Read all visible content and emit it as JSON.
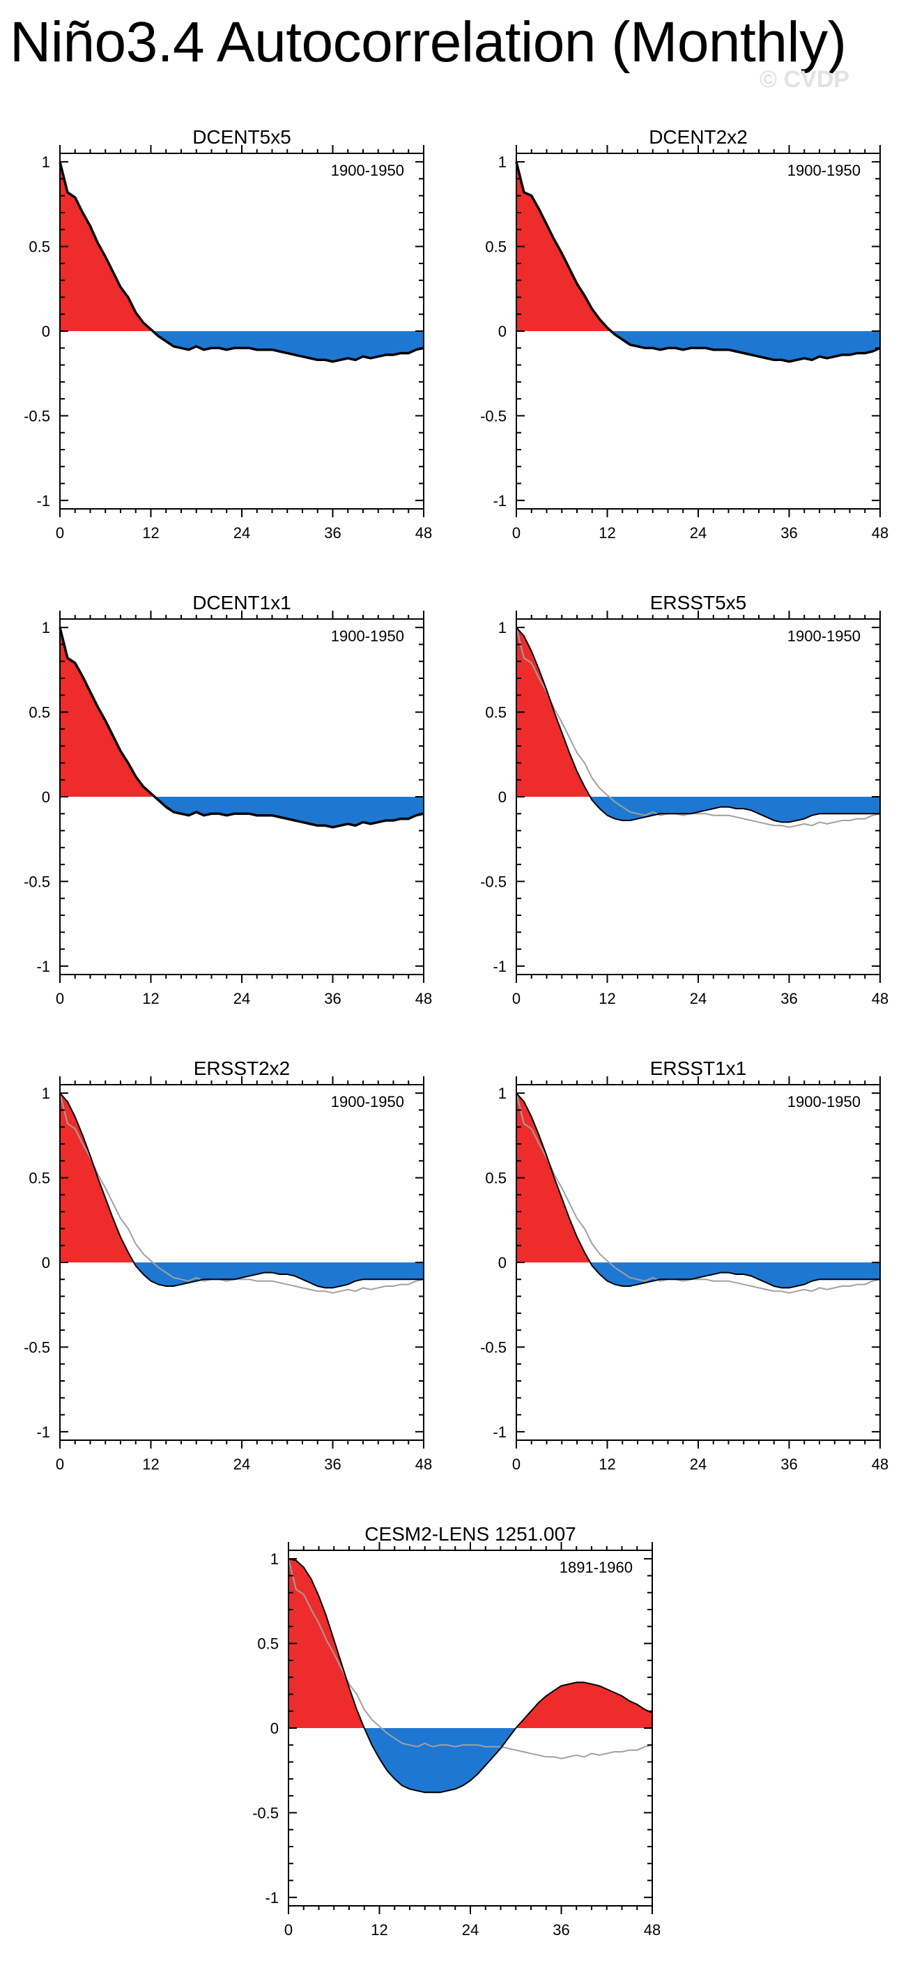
{
  "page": {
    "title": "Niño3.4 Autocorrelation (Monthly)",
    "watermark": "© CVDP"
  },
  "colors": {
    "positive_fill": "#ee2c2c",
    "negative_fill": "#1e78d2",
    "series_line": "#000000",
    "reference_line": "#a0a0a0"
  },
  "chart_data": [
    {
      "type": "area",
      "title": "DCENT5x5",
      "period": "1900-1950",
      "xlim": [
        0,
        48
      ],
      "ylim": [
        -1.05,
        1.05
      ],
      "xticks": [
        0,
        12,
        24,
        36,
        48
      ],
      "yticks": [
        -1,
        -0.5,
        0,
        0.5,
        1
      ],
      "ytick_labels": [
        "-1",
        "-0.5",
        "0",
        "0.5",
        "1"
      ],
      "lags": [
        0,
        1,
        2,
        3,
        4,
        5,
        6,
        7,
        8,
        9,
        10,
        11,
        12,
        13,
        14,
        15,
        16,
        17,
        18,
        19,
        20,
        21,
        22,
        23,
        24,
        25,
        26,
        27,
        28,
        29,
        30,
        31,
        32,
        33,
        34,
        35,
        36,
        37,
        38,
        39,
        40,
        41,
        42,
        43,
        44,
        45,
        46,
        47,
        48
      ],
      "series": [
        {
          "name": "DCENT5x5",
          "values": [
            1.0,
            0.82,
            0.79,
            0.7,
            0.62,
            0.52,
            0.44,
            0.35,
            0.26,
            0.2,
            0.11,
            0.05,
            0.01,
            -0.03,
            -0.06,
            -0.09,
            -0.1,
            -0.11,
            -0.09,
            -0.11,
            -0.1,
            -0.1,
            -0.11,
            -0.1,
            -0.1,
            -0.1,
            -0.11,
            -0.11,
            -0.11,
            -0.12,
            -0.13,
            -0.14,
            -0.15,
            -0.16,
            -0.17,
            -0.17,
            -0.18,
            -0.17,
            -0.16,
            -0.17,
            -0.15,
            -0.16,
            -0.15,
            -0.14,
            -0.14,
            -0.13,
            -0.13,
            -0.11,
            -0.1
          ]
        }
      ]
    },
    {
      "type": "area",
      "title": "DCENT2x2",
      "period": "1900-1950",
      "xlim": [
        0,
        48
      ],
      "ylim": [
        -1.05,
        1.05
      ],
      "xticks": [
        0,
        12,
        24,
        36,
        48
      ],
      "yticks": [
        -1,
        -0.5,
        0,
        0.5,
        1
      ],
      "ytick_labels": [
        "-1",
        "-0.5",
        "0",
        "0.5",
        "1"
      ],
      "lags": [
        0,
        1,
        2,
        3,
        4,
        5,
        6,
        7,
        8,
        9,
        10,
        11,
        12,
        13,
        14,
        15,
        16,
        17,
        18,
        19,
        20,
        21,
        22,
        23,
        24,
        25,
        26,
        27,
        28,
        29,
        30,
        31,
        32,
        33,
        34,
        35,
        36,
        37,
        38,
        39,
        40,
        41,
        42,
        43,
        44,
        45,
        46,
        47,
        48
      ],
      "series": [
        {
          "name": "DCENT2x2",
          "values": [
            1.0,
            0.82,
            0.8,
            0.72,
            0.63,
            0.54,
            0.46,
            0.37,
            0.28,
            0.21,
            0.13,
            0.07,
            0.02,
            -0.02,
            -0.05,
            -0.08,
            -0.09,
            -0.1,
            -0.1,
            -0.11,
            -0.1,
            -0.1,
            -0.11,
            -0.1,
            -0.1,
            -0.1,
            -0.11,
            -0.11,
            -0.11,
            -0.12,
            -0.13,
            -0.14,
            -0.15,
            -0.16,
            -0.17,
            -0.17,
            -0.18,
            -0.17,
            -0.16,
            -0.17,
            -0.15,
            -0.16,
            -0.15,
            -0.14,
            -0.14,
            -0.13,
            -0.13,
            -0.12,
            -0.1
          ]
        }
      ]
    },
    {
      "type": "area",
      "title": "DCENT1x1",
      "period": "1900-1950",
      "xlim": [
        0,
        48
      ],
      "ylim": [
        -1.05,
        1.05
      ],
      "xticks": [
        0,
        12,
        24,
        36,
        48
      ],
      "yticks": [
        -1,
        -0.5,
        0,
        0.5,
        1
      ],
      "ytick_labels": [
        "-1",
        "-0.5",
        "0",
        "0.5",
        "1"
      ],
      "lags": [
        0,
        1,
        2,
        3,
        4,
        5,
        6,
        7,
        8,
        9,
        10,
        11,
        12,
        13,
        14,
        15,
        16,
        17,
        18,
        19,
        20,
        21,
        22,
        23,
        24,
        25,
        26,
        27,
        28,
        29,
        30,
        31,
        32,
        33,
        34,
        35,
        36,
        37,
        38,
        39,
        40,
        41,
        42,
        43,
        44,
        45,
        46,
        47,
        48
      ],
      "series": [
        {
          "name": "DCENT1x1",
          "values": [
            1.0,
            0.82,
            0.79,
            0.71,
            0.62,
            0.53,
            0.45,
            0.36,
            0.27,
            0.2,
            0.12,
            0.06,
            0.02,
            -0.02,
            -0.06,
            -0.09,
            -0.1,
            -0.11,
            -0.09,
            -0.11,
            -0.1,
            -0.1,
            -0.11,
            -0.1,
            -0.1,
            -0.1,
            -0.11,
            -0.11,
            -0.11,
            -0.12,
            -0.13,
            -0.14,
            -0.15,
            -0.16,
            -0.17,
            -0.17,
            -0.18,
            -0.17,
            -0.16,
            -0.17,
            -0.15,
            -0.16,
            -0.15,
            -0.14,
            -0.14,
            -0.13,
            -0.13,
            -0.11,
            -0.1
          ]
        }
      ]
    },
    {
      "type": "area",
      "title": "ERSST5x5",
      "period": "1900-1950",
      "xlim": [
        0,
        48
      ],
      "ylim": [
        -1.05,
        1.05
      ],
      "xticks": [
        0,
        12,
        24,
        36,
        48
      ],
      "yticks": [
        -1,
        -0.5,
        0,
        0.5,
        1
      ],
      "ytick_labels": [
        "-1",
        "-0.5",
        "0",
        "0.5",
        "1"
      ],
      "lags": [
        0,
        1,
        2,
        3,
        4,
        5,
        6,
        7,
        8,
        9,
        10,
        11,
        12,
        13,
        14,
        15,
        16,
        17,
        18,
        19,
        20,
        21,
        22,
        23,
        24,
        25,
        26,
        27,
        28,
        29,
        30,
        31,
        32,
        33,
        34,
        35,
        36,
        37,
        38,
        39,
        40,
        41,
        42,
        43,
        44,
        45,
        46,
        47,
        48
      ],
      "series": [
        {
          "name": "ERSST5x5",
          "values": [
            1.0,
            0.95,
            0.86,
            0.75,
            0.63,
            0.5,
            0.38,
            0.26,
            0.15,
            0.06,
            -0.02,
            -0.07,
            -0.11,
            -0.13,
            -0.14,
            -0.14,
            -0.13,
            -0.12,
            -0.11,
            -0.1,
            -0.1,
            -0.1,
            -0.1,
            -0.1,
            -0.09,
            -0.08,
            -0.07,
            -0.06,
            -0.06,
            -0.07,
            -0.07,
            -0.08,
            -0.1,
            -0.12,
            -0.14,
            -0.15,
            -0.15,
            -0.14,
            -0.13,
            -0.11,
            -0.1,
            -0.1,
            -0.1,
            -0.1,
            -0.1,
            -0.1,
            -0.1,
            -0.1,
            -0.1
          ]
        },
        {
          "name": "DCENT5x5 (reference)",
          "values": [
            1.0,
            0.82,
            0.79,
            0.7,
            0.62,
            0.52,
            0.44,
            0.35,
            0.26,
            0.2,
            0.11,
            0.05,
            0.01,
            -0.03,
            -0.06,
            -0.09,
            -0.1,
            -0.11,
            -0.09,
            -0.11,
            -0.1,
            -0.1,
            -0.11,
            -0.1,
            -0.1,
            -0.1,
            -0.11,
            -0.11,
            -0.11,
            -0.12,
            -0.13,
            -0.14,
            -0.15,
            -0.16,
            -0.17,
            -0.17,
            -0.18,
            -0.17,
            -0.16,
            -0.17,
            -0.15,
            -0.16,
            -0.15,
            -0.14,
            -0.14,
            -0.13,
            -0.13,
            -0.11,
            -0.1
          ]
        }
      ]
    },
    {
      "type": "area",
      "title": "ERSST2x2",
      "period": "1900-1950",
      "xlim": [
        0,
        48
      ],
      "ylim": [
        -1.05,
        1.05
      ],
      "xticks": [
        0,
        12,
        24,
        36,
        48
      ],
      "yticks": [
        -1,
        -0.5,
        0,
        0.5,
        1
      ],
      "ytick_labels": [
        "-1",
        "-0.5",
        "0",
        "0.5",
        "1"
      ],
      "lags": [
        0,
        1,
        2,
        3,
        4,
        5,
        6,
        7,
        8,
        9,
        10,
        11,
        12,
        13,
        14,
        15,
        16,
        17,
        18,
        19,
        20,
        21,
        22,
        23,
        24,
        25,
        26,
        27,
        28,
        29,
        30,
        31,
        32,
        33,
        34,
        35,
        36,
        37,
        38,
        39,
        40,
        41,
        42,
        43,
        44,
        45,
        46,
        47,
        48
      ],
      "series": [
        {
          "name": "ERSST2x2",
          "values": [
            1.0,
            0.95,
            0.86,
            0.75,
            0.63,
            0.5,
            0.38,
            0.26,
            0.15,
            0.06,
            -0.02,
            -0.07,
            -0.11,
            -0.13,
            -0.14,
            -0.14,
            -0.13,
            -0.12,
            -0.11,
            -0.1,
            -0.1,
            -0.1,
            -0.1,
            -0.1,
            -0.09,
            -0.08,
            -0.07,
            -0.06,
            -0.06,
            -0.07,
            -0.07,
            -0.08,
            -0.1,
            -0.12,
            -0.14,
            -0.15,
            -0.15,
            -0.14,
            -0.13,
            -0.11,
            -0.1,
            -0.1,
            -0.1,
            -0.1,
            -0.1,
            -0.1,
            -0.1,
            -0.1,
            -0.1
          ]
        },
        {
          "name": "DCENT5x5 (reference)",
          "values": [
            1.0,
            0.82,
            0.79,
            0.7,
            0.62,
            0.52,
            0.44,
            0.35,
            0.26,
            0.2,
            0.11,
            0.05,
            0.01,
            -0.03,
            -0.06,
            -0.09,
            -0.1,
            -0.11,
            -0.09,
            -0.11,
            -0.1,
            -0.1,
            -0.11,
            -0.1,
            -0.1,
            -0.1,
            -0.11,
            -0.11,
            -0.11,
            -0.12,
            -0.13,
            -0.14,
            -0.15,
            -0.16,
            -0.17,
            -0.17,
            -0.18,
            -0.17,
            -0.16,
            -0.17,
            -0.15,
            -0.16,
            -0.15,
            -0.14,
            -0.14,
            -0.13,
            -0.13,
            -0.11,
            -0.1
          ]
        }
      ]
    },
    {
      "type": "area",
      "title": "ERSST1x1",
      "period": "1900-1950",
      "xlim": [
        0,
        48
      ],
      "ylim": [
        -1.05,
        1.05
      ],
      "xticks": [
        0,
        12,
        24,
        36,
        48
      ],
      "yticks": [
        -1,
        -0.5,
        0,
        0.5,
        1
      ],
      "ytick_labels": [
        "-1",
        "-0.5",
        "0",
        "0.5",
        "1"
      ],
      "lags": [
        0,
        1,
        2,
        3,
        4,
        5,
        6,
        7,
        8,
        9,
        10,
        11,
        12,
        13,
        14,
        15,
        16,
        17,
        18,
        19,
        20,
        21,
        22,
        23,
        24,
        25,
        26,
        27,
        28,
        29,
        30,
        31,
        32,
        33,
        34,
        35,
        36,
        37,
        38,
        39,
        40,
        41,
        42,
        43,
        44,
        45,
        46,
        47,
        48
      ],
      "series": [
        {
          "name": "ERSST1x1",
          "values": [
            1.0,
            0.95,
            0.86,
            0.75,
            0.63,
            0.5,
            0.38,
            0.26,
            0.15,
            0.06,
            -0.02,
            -0.07,
            -0.11,
            -0.13,
            -0.14,
            -0.14,
            -0.13,
            -0.12,
            -0.11,
            -0.1,
            -0.1,
            -0.1,
            -0.1,
            -0.1,
            -0.09,
            -0.08,
            -0.07,
            -0.06,
            -0.06,
            -0.07,
            -0.07,
            -0.08,
            -0.1,
            -0.12,
            -0.14,
            -0.15,
            -0.15,
            -0.14,
            -0.13,
            -0.11,
            -0.1,
            -0.1,
            -0.1,
            -0.1,
            -0.1,
            -0.1,
            -0.1,
            -0.1,
            -0.1
          ]
        },
        {
          "name": "DCENT5x5 (reference)",
          "values": [
            1.0,
            0.82,
            0.79,
            0.7,
            0.62,
            0.52,
            0.44,
            0.35,
            0.26,
            0.2,
            0.11,
            0.05,
            0.01,
            -0.03,
            -0.06,
            -0.09,
            -0.1,
            -0.11,
            -0.09,
            -0.11,
            -0.1,
            -0.1,
            -0.11,
            -0.1,
            -0.1,
            -0.1,
            -0.11,
            -0.11,
            -0.11,
            -0.12,
            -0.13,
            -0.14,
            -0.15,
            -0.16,
            -0.17,
            -0.17,
            -0.18,
            -0.17,
            -0.16,
            -0.17,
            -0.15,
            -0.16,
            -0.15,
            -0.14,
            -0.14,
            -0.13,
            -0.13,
            -0.11,
            -0.1
          ]
        }
      ]
    },
    {
      "type": "area",
      "title": "CESM2-LENS 1251.007",
      "period": "1891-1960",
      "xlim": [
        0,
        48
      ],
      "ylim": [
        -1.05,
        1.05
      ],
      "xticks": [
        0,
        12,
        24,
        36,
        48
      ],
      "yticks": [
        -1,
        -0.5,
        0,
        0.5,
        1
      ],
      "ytick_labels": [
        "-1",
        "-0.5",
        "0",
        "0.5",
        "1"
      ],
      "lags": [
        0,
        1,
        2,
        3,
        4,
        5,
        6,
        7,
        8,
        9,
        10,
        11,
        12,
        13,
        14,
        15,
        16,
        17,
        18,
        19,
        20,
        21,
        22,
        23,
        24,
        25,
        26,
        27,
        28,
        29,
        30,
        31,
        32,
        33,
        34,
        35,
        36,
        37,
        38,
        39,
        40,
        41,
        42,
        43,
        44,
        45,
        46,
        47,
        48
      ],
      "series": [
        {
          "name": "CESM2-LENS 1251.007",
          "values": [
            1.0,
            0.99,
            0.95,
            0.88,
            0.78,
            0.66,
            0.52,
            0.38,
            0.24,
            0.11,
            0.0,
            -0.1,
            -0.18,
            -0.25,
            -0.3,
            -0.34,
            -0.36,
            -0.37,
            -0.38,
            -0.38,
            -0.38,
            -0.37,
            -0.36,
            -0.34,
            -0.31,
            -0.27,
            -0.22,
            -0.17,
            -0.12,
            -0.06,
            0.0,
            0.05,
            0.1,
            0.15,
            0.19,
            0.22,
            0.25,
            0.26,
            0.27,
            0.27,
            0.26,
            0.25,
            0.23,
            0.21,
            0.19,
            0.16,
            0.14,
            0.11,
            0.09
          ]
        },
        {
          "name": "DCENT5x5 (reference)",
          "values": [
            1.0,
            0.82,
            0.79,
            0.7,
            0.62,
            0.52,
            0.44,
            0.35,
            0.26,
            0.2,
            0.11,
            0.05,
            0.01,
            -0.03,
            -0.06,
            -0.09,
            -0.1,
            -0.11,
            -0.09,
            -0.11,
            -0.1,
            -0.1,
            -0.11,
            -0.1,
            -0.1,
            -0.1,
            -0.11,
            -0.11,
            -0.11,
            -0.12,
            -0.13,
            -0.14,
            -0.15,
            -0.16,
            -0.17,
            -0.17,
            -0.18,
            -0.17,
            -0.16,
            -0.17,
            -0.15,
            -0.16,
            -0.15,
            -0.14,
            -0.14,
            -0.13,
            -0.13,
            -0.11,
            -0.1
          ]
        }
      ]
    }
  ]
}
